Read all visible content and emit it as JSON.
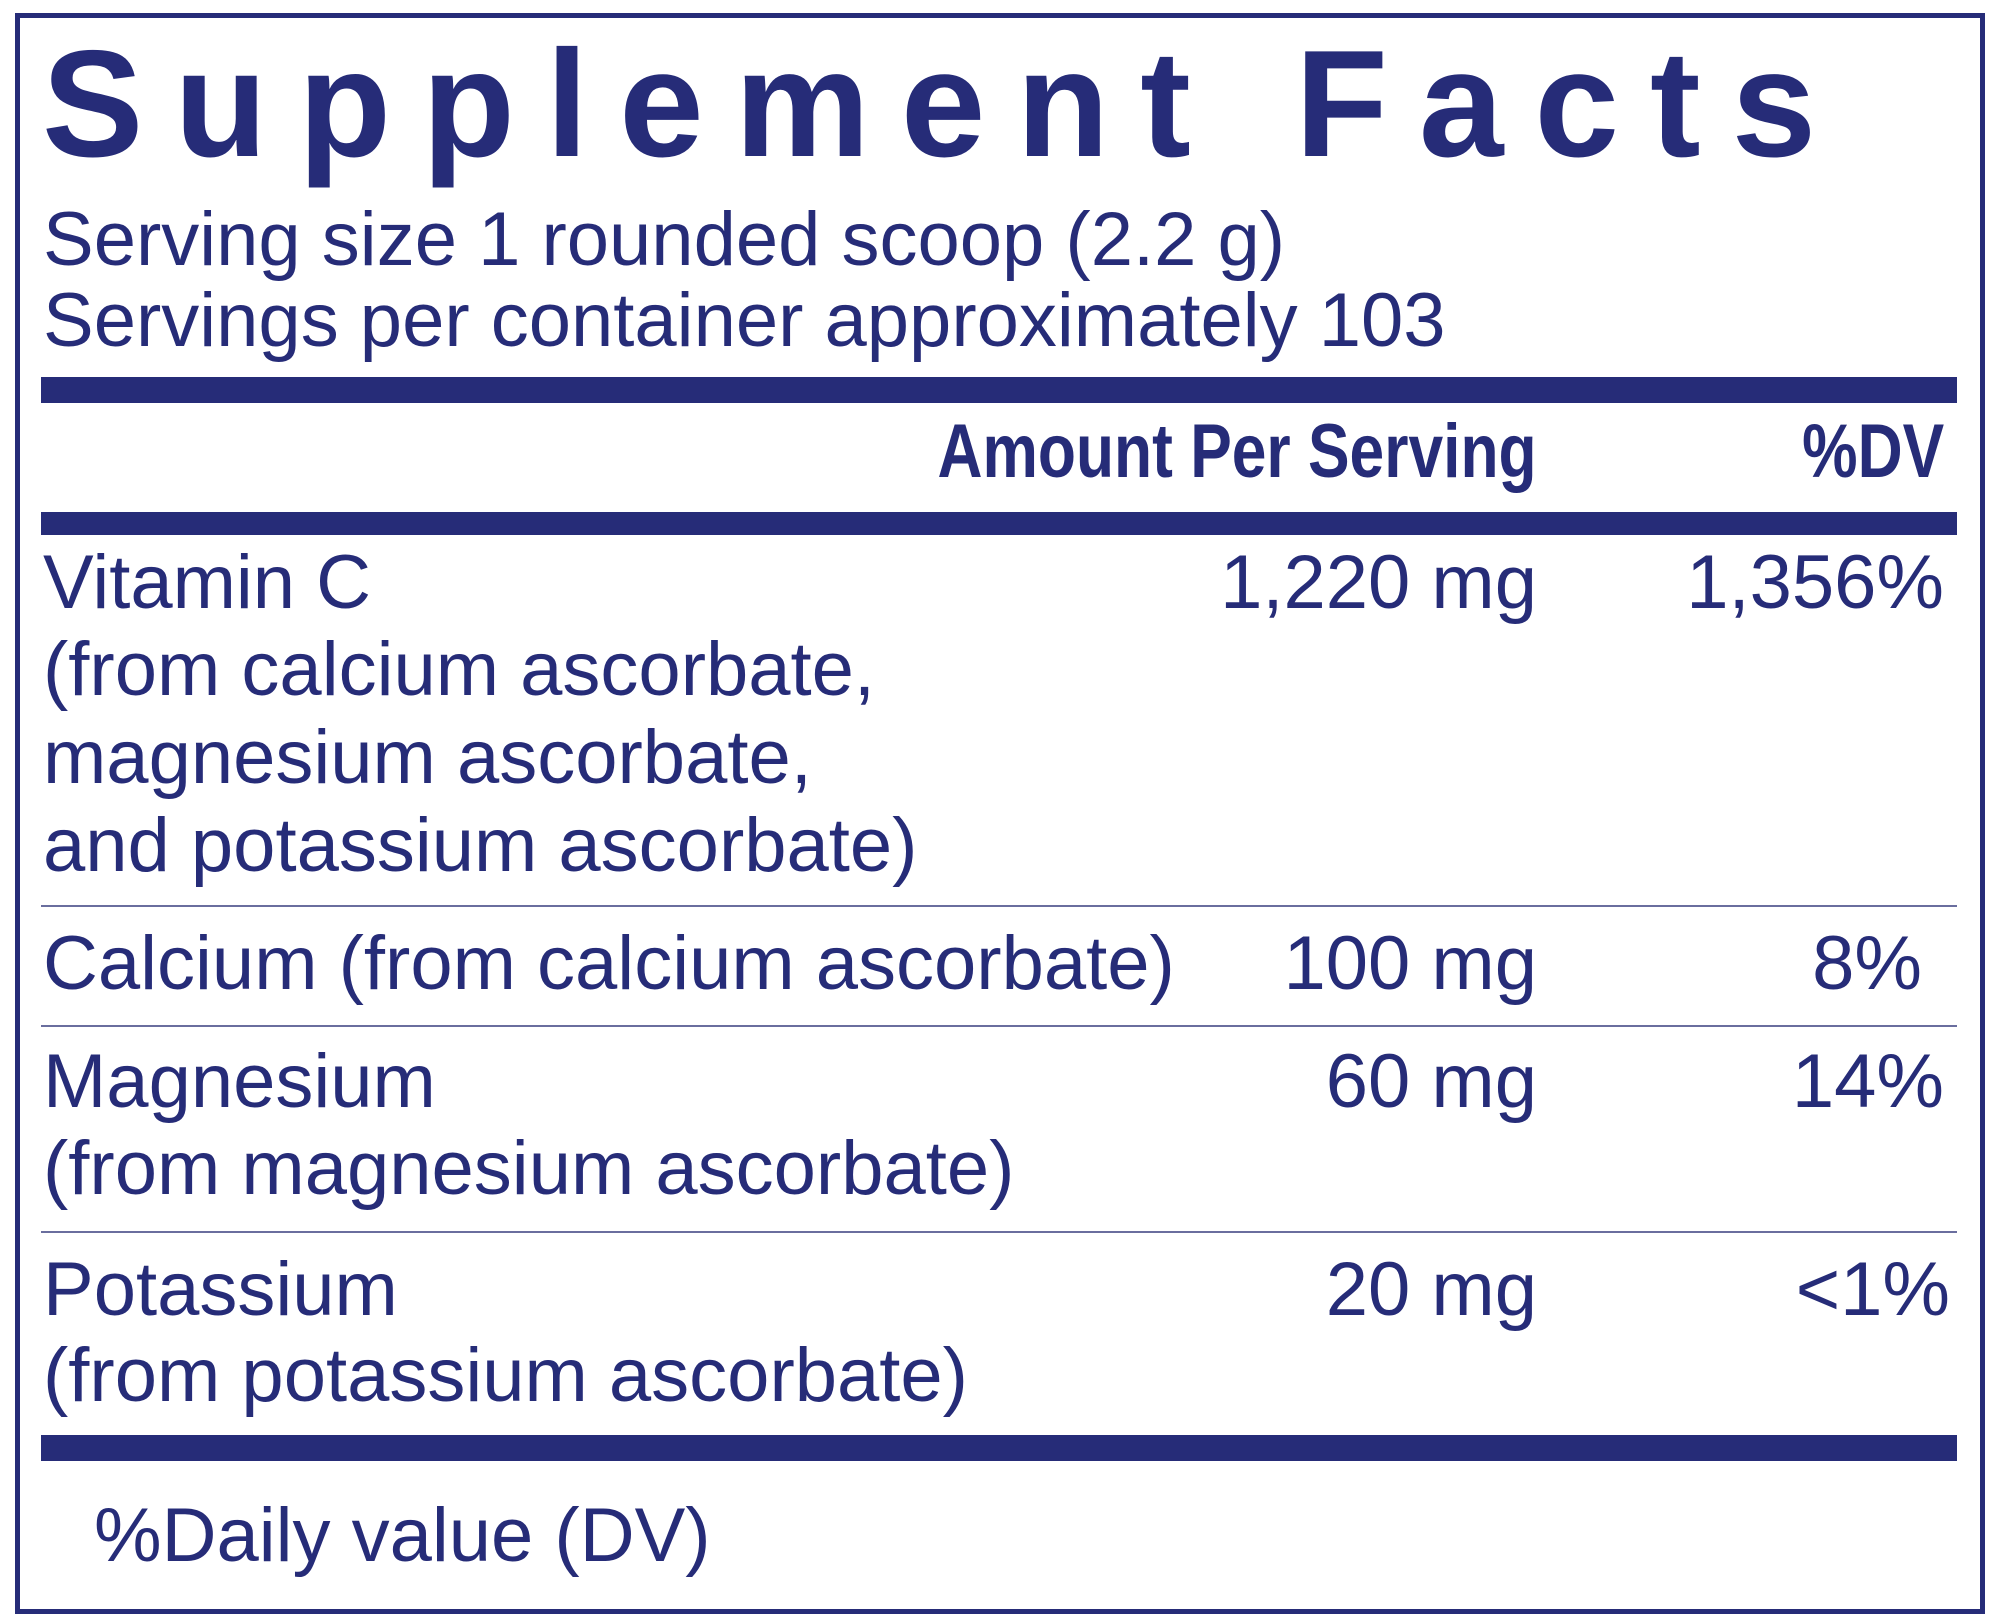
{
  "title": "Supplement Facts",
  "serving_size": "Serving size  1 rounded scoop (2.2 g)",
  "servings_per_container": "Servings per container  approximately 103",
  "header": {
    "amount": "Amount Per Serving",
    "dv": "%DV"
  },
  "rows": [
    {
      "name_lines": [
        "Vitamin C",
        "(from calcium ascorbate,",
        "magnesium ascorbate,",
        "and potassium ascorbate)"
      ],
      "amount": "1,220 mg",
      "dv": "1,356%"
    },
    {
      "name_lines": [
        "Calcium (from calcium ascorbate)"
      ],
      "amount": "100 mg",
      "dv": "8%"
    },
    {
      "name_lines": [
        "Magnesium",
        "(from magnesium ascorbate)"
      ],
      "amount": "60 mg",
      "dv": "14%"
    },
    {
      "name_lines": [
        "Potassium",
        "(from potassium ascorbate)"
      ],
      "amount": "20 mg",
      "dv": "<1%"
    }
  ],
  "footnote": "%Daily value (DV)",
  "colors": {
    "ink": "#262c78"
  }
}
